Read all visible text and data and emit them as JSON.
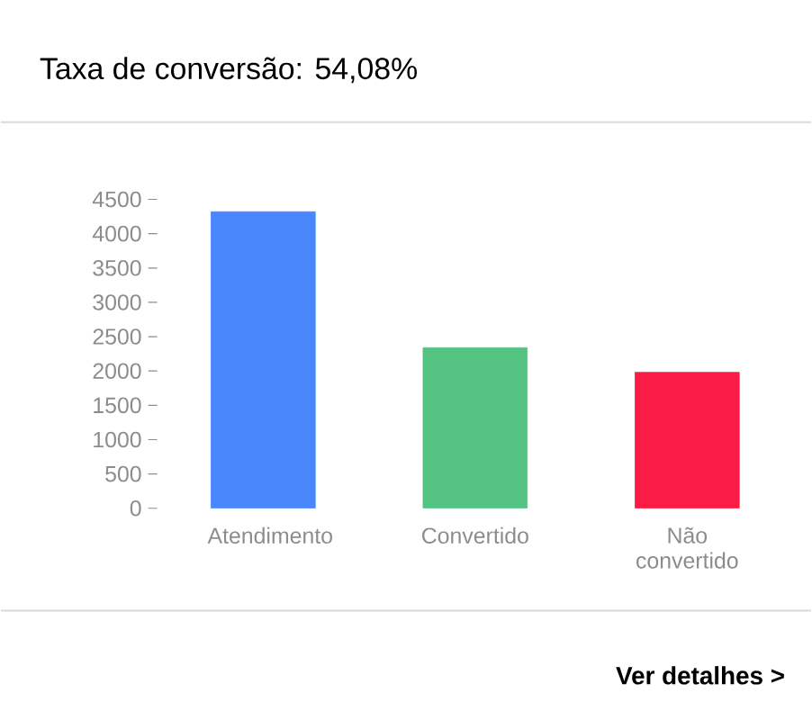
{
  "chart_data": {
    "type": "bar",
    "title": "Taxa de conversão: 54,08%",
    "categories": [
      "Atendimento",
      "Convertido",
      "Não convertido"
    ],
    "values": [
      4320,
      2340,
      1980
    ],
    "colors": [
      "#4a86fc",
      "#55c483",
      "#fa1c44"
    ],
    "ylim": [
      0,
      4500
    ],
    "yticks": [
      0,
      500,
      1000,
      1500,
      2000,
      2500,
      3000,
      3500,
      4000,
      4500
    ],
    "annotations": [
      "Ver detalhes >"
    ]
  }
}
